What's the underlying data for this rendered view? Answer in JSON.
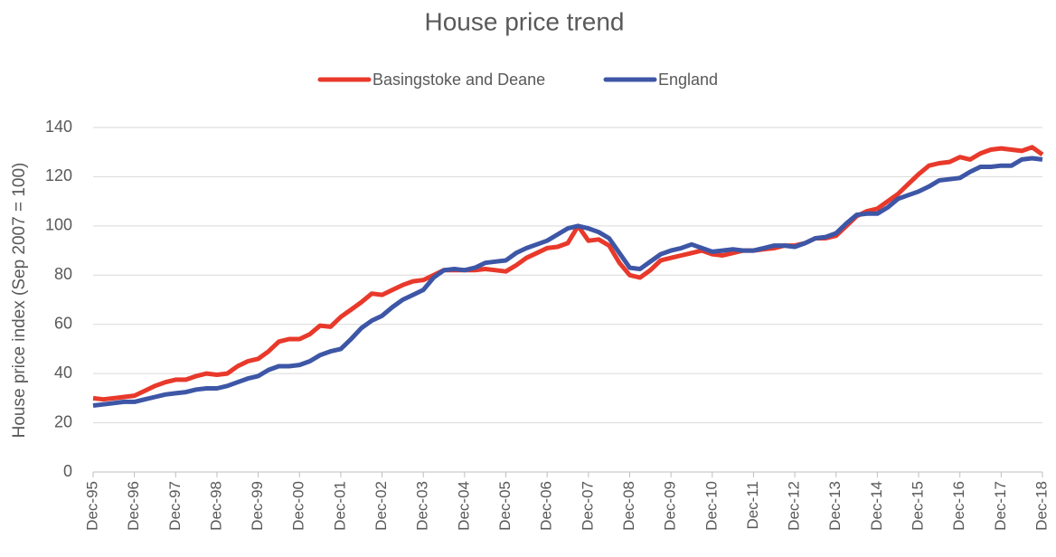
{
  "chart_data": {
    "type": "line",
    "title": "House price trend",
    "y_label": "House price index (Sep 2007 = 100)",
    "categories": [
      "Dec-95",
      null,
      null,
      null,
      "Dec-96",
      null,
      null,
      null,
      "Dec-97",
      null,
      null,
      null,
      "Dec-98",
      null,
      null,
      null,
      "Dec-99",
      null,
      null,
      null,
      "Dec-00",
      null,
      null,
      null,
      "Dec-01",
      null,
      null,
      null,
      "Dec-02",
      null,
      null,
      null,
      "Dec-03",
      null,
      null,
      null,
      "Dec-04",
      null,
      null,
      null,
      "Dec-05",
      null,
      null,
      null,
      "Dec-06",
      null,
      null,
      null,
      "Dec-07",
      null,
      null,
      null,
      "Dec-08",
      null,
      null,
      null,
      "Dec-09",
      null,
      null,
      null,
      "Dec-10",
      null,
      null,
      null,
      "Dec-11",
      null,
      null,
      null,
      "Dec-12",
      null,
      null,
      null,
      "Dec-13",
      null,
      null,
      null,
      "Dec-14",
      null,
      null,
      null,
      "Dec-15",
      null,
      null,
      null,
      "Dec-16",
      null,
      null,
      null,
      "Dec-17",
      null,
      null,
      null,
      "Dec-18"
    ],
    "series": [
      {
        "name": "Basingstoke and Deane",
        "color": "#e8392b",
        "values": [
          30,
          29.5,
          30,
          30.5,
          31,
          33,
          35,
          36.5,
          37.5,
          37.5,
          39,
          40,
          39.5,
          40,
          43,
          45,
          46,
          49,
          53,
          54,
          54,
          56,
          59.5,
          59,
          63,
          66,
          69,
          72.5,
          72,
          74,
          76,
          77.5,
          78,
          80,
          82,
          82,
          82,
          82,
          82.5,
          82,
          81.5,
          84,
          87,
          89,
          91,
          91.5,
          93,
          100,
          94,
          94.5,
          92,
          85,
          80,
          79,
          82,
          86,
          87,
          88,
          89,
          90,
          88.5,
          88,
          89,
          90,
          90,
          90.5,
          91,
          92,
          92,
          93,
          95,
          95,
          96,
          100,
          104,
          106,
          107,
          110,
          113,
          117,
          121,
          124.5,
          125.5,
          126,
          128,
          127,
          129.5,
          131,
          131.5,
          131,
          130.5,
          132,
          129
        ]
      },
      {
        "name": "England",
        "color": "#3d56a6",
        "values": [
          27,
          27.5,
          28,
          28.5,
          28.5,
          29.5,
          30.5,
          31.5,
          32,
          32.5,
          33.5,
          34,
          34,
          35,
          36.5,
          38,
          39,
          41.5,
          43,
          43,
          43.5,
          45,
          47.5,
          49,
          50,
          54,
          58.5,
          61.5,
          63.5,
          67,
          70,
          72,
          74,
          79,
          82,
          82.5,
          82,
          83,
          85,
          85.5,
          86,
          89,
          91,
          92.5,
          94,
          96.5,
          99,
          100,
          99,
          97.5,
          95,
          89,
          83,
          82.5,
          85.5,
          88.5,
          90,
          91,
          92.5,
          91,
          89.5,
          90,
          90.5,
          90,
          90,
          91,
          92,
          92,
          91.5,
          93,
          95,
          95.5,
          97,
          101,
          104.5,
          105,
          105,
          107.5,
          111,
          112.5,
          114,
          116,
          118.5,
          119,
          119.5,
          122,
          124,
          124,
          124.5,
          124.5,
          127,
          127.5,
          127
        ]
      }
    ],
    "ylim": [
      0,
      140
    ],
    "yticks": [
      0,
      20,
      40,
      60,
      80,
      100,
      120,
      140
    ],
    "grid": true,
    "legend": "top"
  }
}
